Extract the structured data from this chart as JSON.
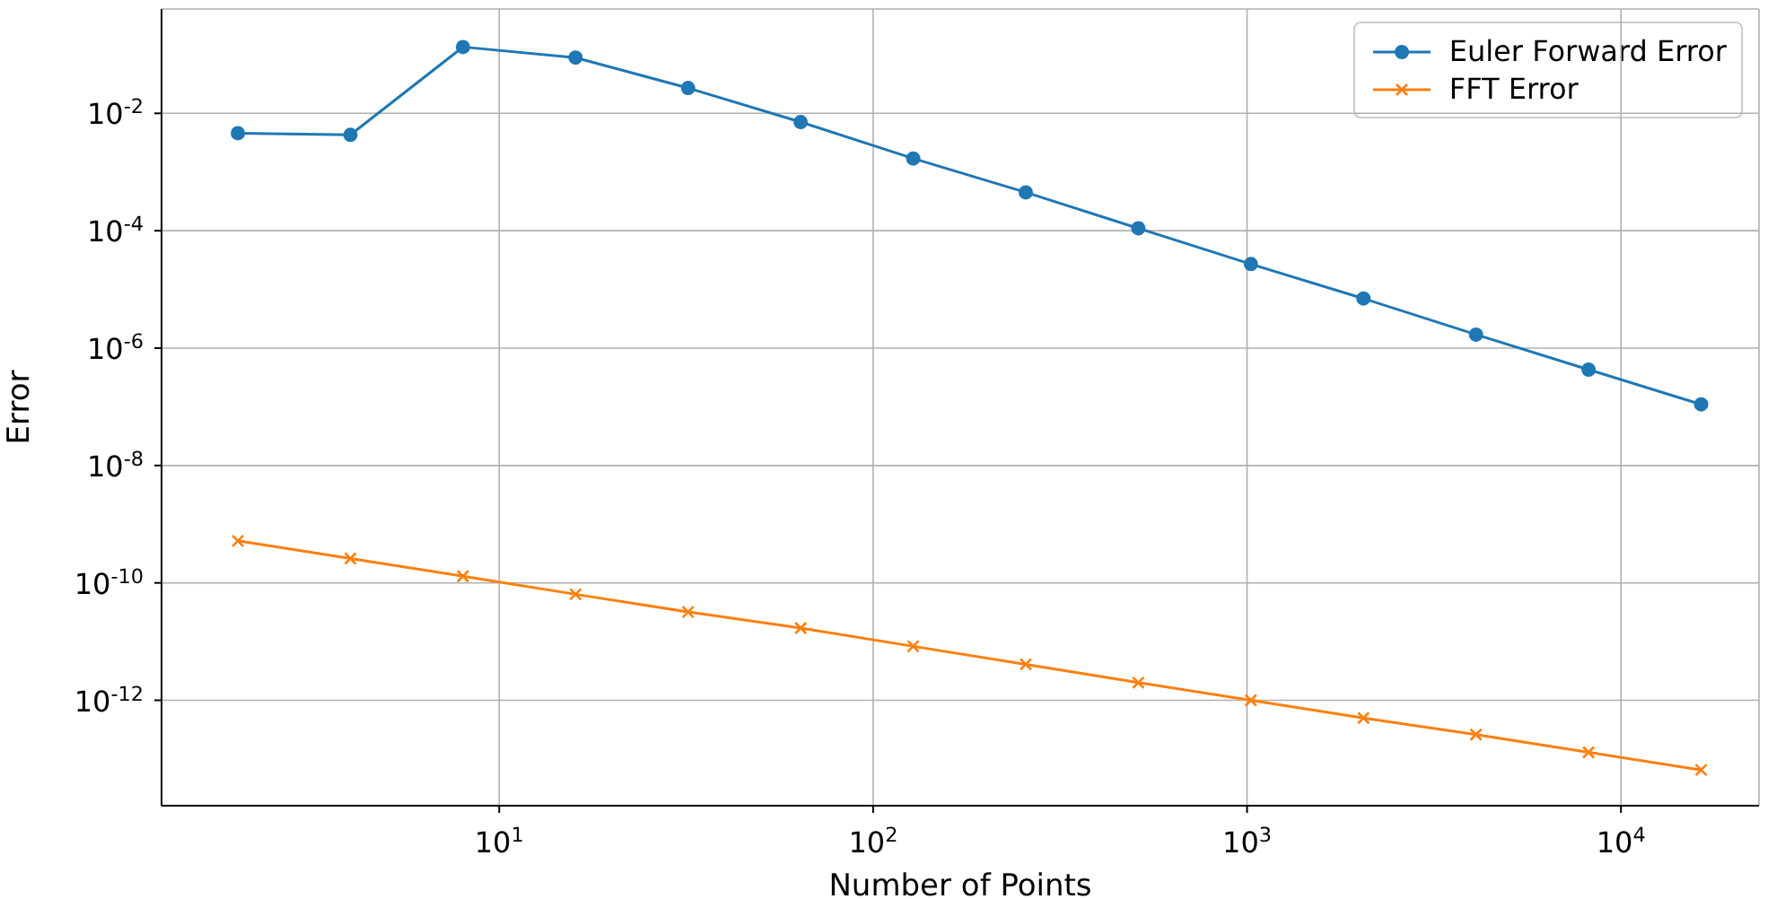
{
  "chart_data": {
    "type": "line",
    "xlabel": "Number of Points",
    "ylabel": "Error",
    "log": "xy",
    "grid": true,
    "legend": "top right",
    "x": [
      2,
      4,
      8,
      16,
      32,
      64,
      128,
      256,
      512,
      1024,
      2048,
      4096,
      8192,
      16384
    ],
    "xlim": [
      1.25,
      23400
    ],
    "ylim": [
      1.6e-14,
      0.6
    ],
    "xticks": [
      {
        "value": 10,
        "label": "10$^{1}$"
      },
      {
        "value": 100,
        "label": "10$^{2}$"
      },
      {
        "value": 1000,
        "label": "10$^{3}$"
      },
      {
        "value": 10000,
        "label": "10$^{4}$"
      }
    ],
    "yticks": [
      {
        "value": 1e-12,
        "label": "10$^{-12}$"
      },
      {
        "value": 1e-10,
        "label": "10$^{-10}$"
      },
      {
        "value": 1e-08,
        "label": "10$^{-8}$"
      },
      {
        "value": 1e-06,
        "label": "10$^{-6}$"
      },
      {
        "value": 0.0001,
        "label": "10$^{-4}$"
      },
      {
        "value": 0.01,
        "label": "10$^{-2}$"
      }
    ],
    "series": [
      {
        "name": "Euler Forward Error",
        "color": "#1f77b4",
        "marker": "circle",
        "values": [
          0.0046,
          0.0043,
          0.135,
          0.089,
          0.027,
          0.0071,
          0.0017,
          0.00045,
          0.00011,
          2.7e-05,
          7e-06,
          1.7e-06,
          4.3e-07,
          1.1e-07
        ]
      },
      {
        "name": "FFT Error",
        "color": "#ff7f0e",
        "marker": "cross",
        "values": [
          5.2e-10,
          2.6e-10,
          1.3e-10,
          6.4e-11,
          3.2e-11,
          1.7e-11,
          8.3e-12,
          4.1e-12,
          2e-12,
          1e-12,
          5e-13,
          2.6e-13,
          1.3e-13,
          6.5e-14
        ]
      }
    ]
  }
}
